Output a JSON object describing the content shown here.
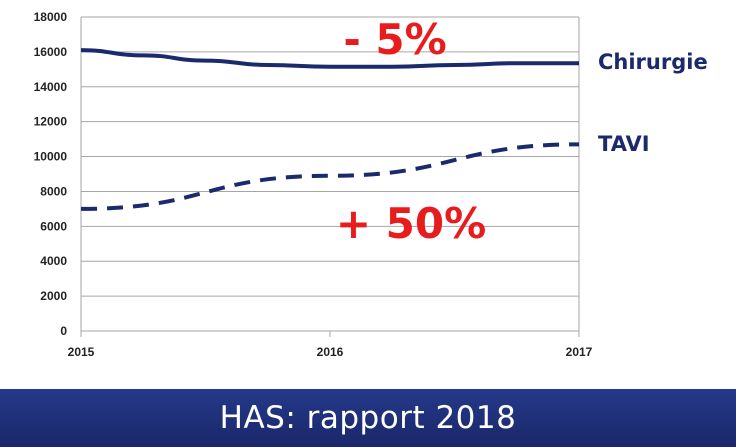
{
  "chart_data": {
    "type": "line",
    "x": [
      "2015",
      "2016",
      "2017"
    ],
    "ylim": [
      0,
      18000
    ],
    "yticks": [
      "0",
      "2000",
      "4000",
      "6000",
      "8000",
      "10000",
      "12000",
      "14000",
      "16000",
      "18000"
    ],
    "grid": true,
    "legend": "right of lines (inline labels)",
    "series": [
      {
        "name": "Chirurgie",
        "style": "solid",
        "color": "#1a2a6c",
        "points": [
          [
            2015.0,
            16100
          ],
          [
            2015.25,
            15800
          ],
          [
            2015.5,
            15500
          ],
          [
            2015.75,
            15250
          ],
          [
            2016.0,
            15150
          ],
          [
            2016.25,
            15150
          ],
          [
            2016.5,
            15250
          ],
          [
            2016.75,
            15350
          ],
          [
            2017.0,
            15350
          ]
        ]
      },
      {
        "name": "TAVI",
        "style": "dashed",
        "color": "#1a2a6c",
        "points": [
          [
            2015.0,
            7000
          ],
          [
            2016.0,
            8900
          ],
          [
            2017.0,
            10700
          ]
        ]
      }
    ],
    "annotations": [
      {
        "text": "- 5%",
        "color": "#e81c1c"
      },
      {
        "text": "+ 50%",
        "color": "#e81c1c"
      }
    ]
  },
  "footer": {
    "text": "HAS: rapport 2018"
  },
  "colors": {
    "footer_bg": "#1f2f78",
    "series": "#1a2a6c",
    "annotation": "#e81c1c",
    "grid": "#a6a6a6"
  }
}
